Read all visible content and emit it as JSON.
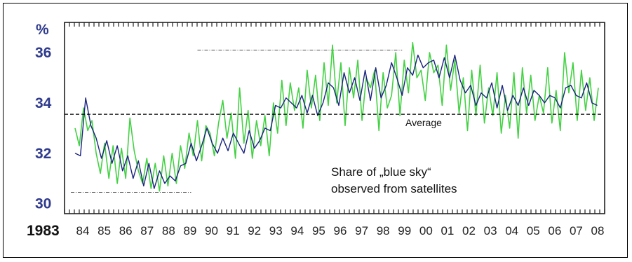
{
  "chart_data": {
    "type": "line",
    "ylabel": "%",
    "ylim": [
      29.6,
      37.2
    ],
    "yticks": [
      30,
      32,
      34,
      36
    ],
    "x_start_label": "1983",
    "xticks": [
      "84",
      "85",
      "86",
      "87",
      "88",
      "89",
      "90",
      "91",
      "92",
      "93",
      "94",
      "95",
      "96",
      "97",
      "98",
      "99",
      "00",
      "01",
      "02",
      "03",
      "04",
      "05",
      "06",
      "07",
      "08"
    ],
    "average": {
      "label": "Average",
      "value": 33.55
    },
    "annotation": [
      "Share of „blue sky“",
      "observed from satellites"
    ],
    "reference_lines": [
      {
        "value": 36.1,
        "from_year": 1989.3,
        "to_year": 1999.0
      },
      {
        "value": 30.45,
        "from_year": 1983.3,
        "to_year": 1989.0
      }
    ],
    "colors": {
      "blue_series": "#1a237e",
      "green_series": "#44d144",
      "axis_labels": "#2e3a8c"
    },
    "series": [
      {
        "x": [
          1983.5,
          1983.75,
          1984.0,
          1984.25,
          1984.5,
          1984.75,
          1985.0,
          1985.25,
          1985.5,
          1985.75,
          1986.0,
          1986.25,
          1986.5,
          1986.75,
          1987.0,
          1987.25,
          1987.5,
          1987.75,
          1988.0,
          1988.25,
          1988.5,
          1988.75,
          1989.0,
          1989.25,
          1989.5,
          1989.75,
          1990.0,
          1990.25,
          1990.5,
          1990.75,
          1991.0,
          1991.25,
          1991.5,
          1991.75,
          1992.0,
          1992.25,
          1992.5,
          1992.75,
          1993.0,
          1993.25,
          1993.5,
          1993.75,
          1994.0,
          1994.25,
          1994.5,
          1994.75,
          1995.0,
          1995.25,
          1995.5,
          1995.75,
          1996.0,
          1996.25,
          1996.5,
          1996.75,
          1997.0,
          1997.25,
          1997.5,
          1997.75,
          1998.0,
          1998.25,
          1998.5,
          1998.75,
          1999.0,
          1999.25,
          1999.5,
          1999.75,
          2000.0,
          2000.25,
          2000.5,
          2000.75,
          2001.0,
          2001.25,
          2001.5,
          2001.75,
          2002.0,
          2002.25,
          2002.5,
          2002.75,
          2003.0,
          2003.25,
          2003.5,
          2003.75,
          2004.0,
          2004.25,
          2004.5,
          2004.75,
          2005.0,
          2005.25,
          2005.5,
          2005.75,
          2006.0,
          2006.25,
          2006.5,
          2006.75,
          2007.0,
          2007.25,
          2007.5,
          2007.75,
          2008.0,
          2008.25
        ],
        "values": [
          32.0,
          31.9,
          34.2,
          33.1,
          32.6,
          31.8,
          32.5,
          31.6,
          32.3,
          31.3,
          31.9,
          31.0,
          31.7,
          30.7,
          31.6,
          30.6,
          31.3,
          30.8,
          31.1,
          30.9,
          31.5,
          31.6,
          32.4,
          31.7,
          32.3,
          33.0,
          32.4,
          32.0,
          32.6,
          32.1,
          32.8,
          32.4,
          32.0,
          32.9,
          32.2,
          32.5,
          33.0,
          32.9,
          33.9,
          33.8,
          34.2,
          34.0,
          33.8,
          34.3,
          33.6,
          34.3,
          33.5,
          34.0,
          34.8,
          34.6,
          33.9,
          35.2,
          34.4,
          35.0,
          34.1,
          35.3,
          34.1,
          35.4,
          34.2,
          34.7,
          35.6,
          35.0,
          34.3,
          35.4,
          35.1,
          35.9,
          35.4,
          35.6,
          35.7,
          35.0,
          35.8,
          35.0,
          35.9,
          34.9,
          34.4,
          34.7,
          33.9,
          34.4,
          34.2,
          34.8,
          33.8,
          34.7,
          33.7,
          34.3,
          33.9,
          34.6,
          33.9,
          34.5,
          34.3,
          34.0,
          34.3,
          34.2,
          33.8,
          34.6,
          34.7,
          34.3,
          34.2,
          34.8,
          34.0,
          33.9
        ]
      },
      {
        "x": [
          1983.5,
          1983.7,
          1983.9,
          1984.1,
          1984.3,
          1984.5,
          1984.7,
          1984.9,
          1985.1,
          1985.3,
          1985.5,
          1985.7,
          1985.9,
          1986.1,
          1986.3,
          1986.5,
          1986.7,
          1986.9,
          1987.1,
          1987.3,
          1987.5,
          1987.7,
          1987.9,
          1988.1,
          1988.3,
          1988.5,
          1988.7,
          1988.9,
          1989.1,
          1989.3,
          1989.5,
          1989.7,
          1989.9,
          1990.1,
          1990.3,
          1990.5,
          1990.7,
          1990.9,
          1991.1,
          1991.3,
          1991.5,
          1991.7,
          1991.9,
          1992.1,
          1992.3,
          1992.5,
          1992.7,
          1992.9,
          1993.1,
          1993.3,
          1993.5,
          1993.7,
          1993.9,
          1994.1,
          1994.3,
          1994.5,
          1994.7,
          1994.9,
          1995.1,
          1995.3,
          1995.5,
          1995.7,
          1995.9,
          1996.1,
          1996.3,
          1996.5,
          1996.7,
          1996.9,
          1997.1,
          1997.3,
          1997.5,
          1997.7,
          1997.9,
          1998.1,
          1998.3,
          1998.5,
          1998.7,
          1998.9,
          1999.1,
          1999.3,
          1999.5,
          1999.7,
          1999.9,
          2000.1,
          2000.3,
          2000.5,
          2000.7,
          2000.9,
          2001.1,
          2001.3,
          2001.5,
          2001.7,
          2001.9,
          2002.1,
          2002.3,
          2002.5,
          2002.7,
          2002.9,
          2003.1,
          2003.3,
          2003.5,
          2003.7,
          2003.9,
          2004.1,
          2004.3,
          2004.5,
          2004.7,
          2004.9,
          2005.1,
          2005.3,
          2005.5,
          2005.7,
          2005.9,
          2006.1,
          2006.3,
          2006.5,
          2006.7,
          2006.9,
          2007.1,
          2007.3,
          2007.5,
          2007.7,
          2007.9,
          2008.1,
          2008.3
        ],
        "values": [
          33.0,
          32.3,
          33.8,
          32.9,
          33.3,
          32.0,
          31.2,
          32.4,
          31.0,
          32.3,
          30.8,
          32.2,
          31.0,
          33.4,
          32.1,
          31.3,
          30.8,
          31.8,
          30.6,
          31.6,
          30.5,
          31.9,
          30.7,
          32.0,
          30.8,
          32.3,
          31.4,
          32.8,
          31.9,
          33.3,
          31.7,
          33.1,
          32.8,
          31.9,
          33.2,
          34.1,
          32.6,
          33.6,
          31.8,
          34.6,
          32.4,
          33.7,
          31.8,
          33.3,
          32.3,
          33.5,
          31.9,
          34.0,
          32.8,
          34.9,
          33.1,
          34.8,
          33.7,
          34.6,
          33.0,
          35.3,
          33.8,
          35.1,
          33.3,
          35.6,
          33.9,
          36.3,
          34.0,
          35.6,
          33.1,
          35.4,
          34.2,
          35.7,
          33.3,
          35.0,
          34.6,
          35.3,
          32.9,
          35.2,
          33.8,
          34.3,
          36.0,
          33.5,
          35.7,
          34.4,
          36.4,
          35.0,
          35.3,
          34.1,
          36.0,
          35.2,
          35.5,
          33.9,
          36.3,
          34.5,
          35.7,
          33.6,
          35.0,
          32.9,
          35.3,
          33.5,
          35.5,
          33.2,
          34.6,
          33.5,
          35.2,
          32.8,
          34.3,
          33.0,
          35.2,
          32.6,
          35.4,
          33.6,
          35.1,
          33.3,
          34.3,
          33.6,
          35.4,
          33.2,
          34.5,
          32.9,
          36.0,
          34.4,
          35.6,
          33.3,
          35.3,
          33.7,
          35.0,
          33.3,
          34.6
        ]
      }
    ]
  }
}
